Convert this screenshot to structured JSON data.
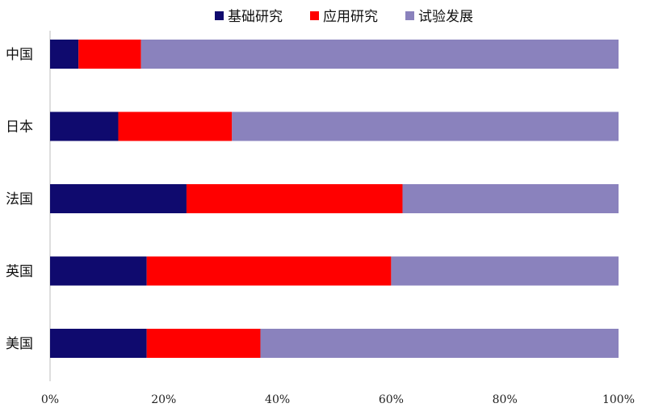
{
  "chart_data": {
    "type": "bar",
    "orientation": "horizontal",
    "stacked": "percent",
    "categories": [
      "中国",
      "日本",
      "法国",
      "英国",
      "美国"
    ],
    "series": [
      {
        "name": "基础研究",
        "color": "#0f0a6e",
        "values": [
          5,
          12,
          24,
          17,
          17
        ]
      },
      {
        "name": "应用研究",
        "color": "#ff0000",
        "values": [
          11,
          20,
          38,
          43,
          20
        ]
      },
      {
        "name": "试验发展",
        "color": "#8a82bd",
        "values": [
          84,
          68,
          38,
          40,
          63
        ]
      }
    ],
    "x_ticks": [
      "0%",
      "20%",
      "40%",
      "60%",
      "80%",
      "100%"
    ],
    "xlim": [
      0,
      100
    ],
    "grid": false,
    "legend_position": "top"
  }
}
